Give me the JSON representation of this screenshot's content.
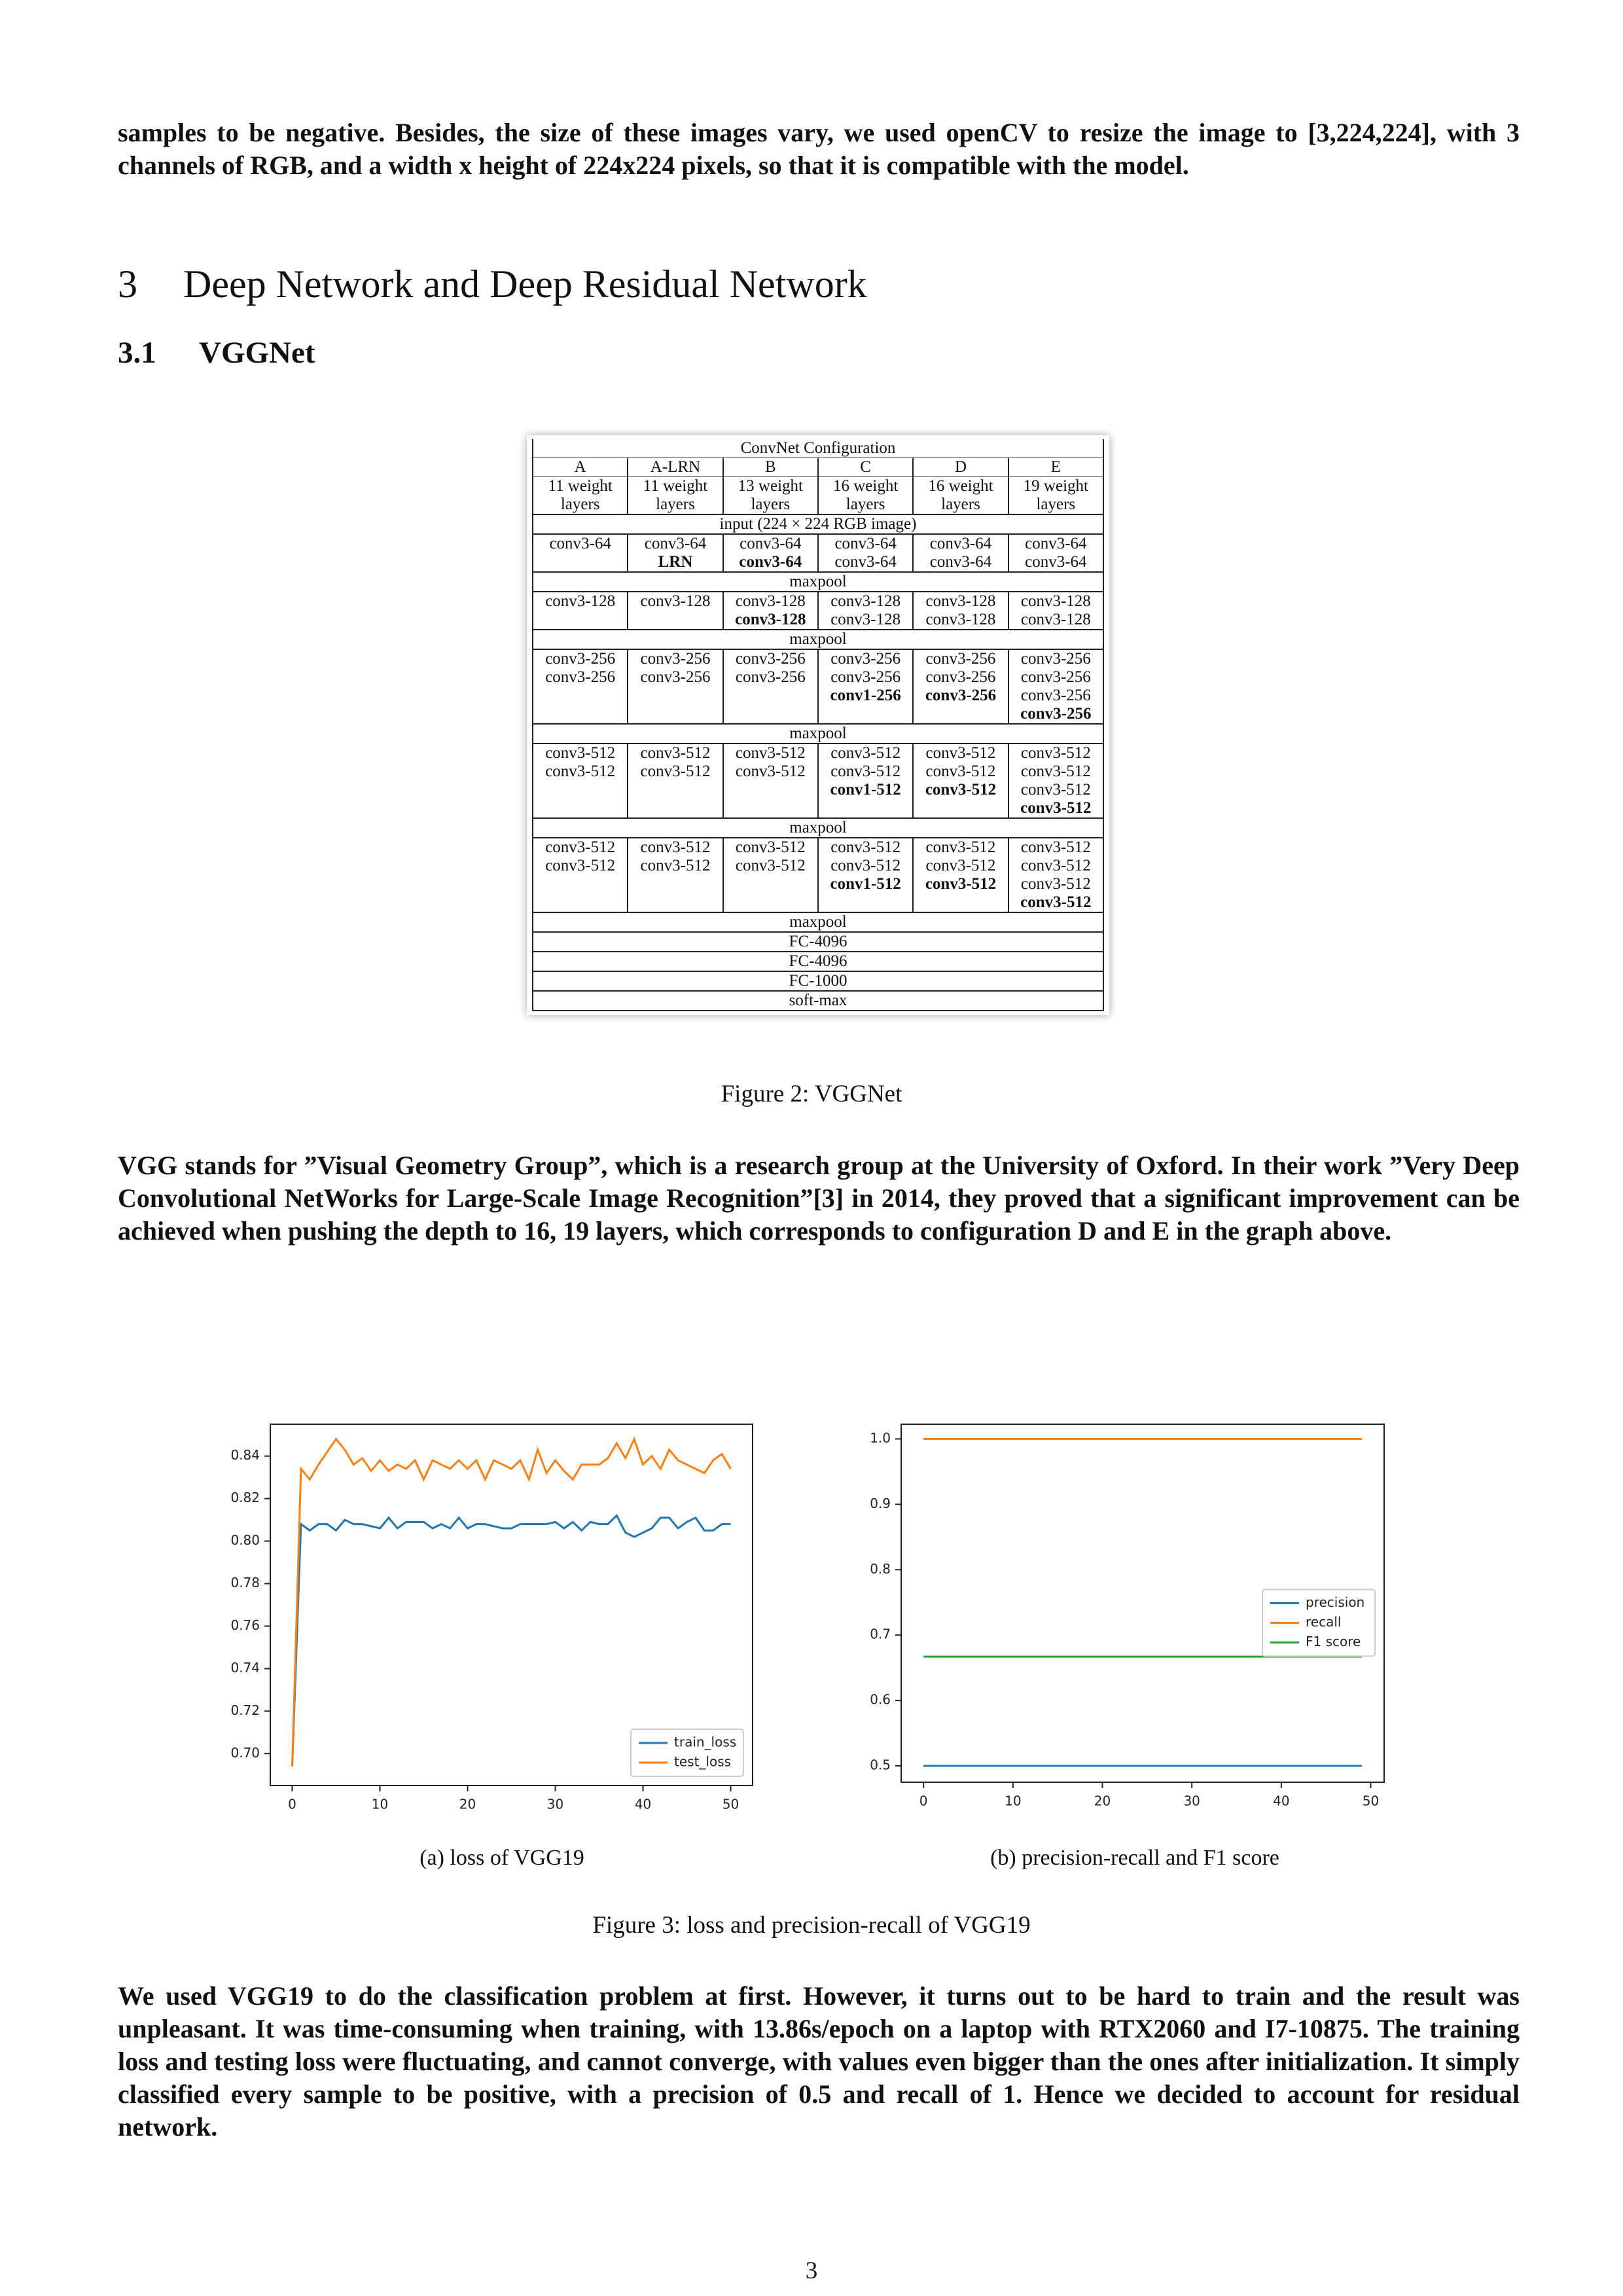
{
  "paragraphs": [
    "samples to be negative. Besides, the size of these images vary, we used openCV to resize the image to [3,224,224], with 3 channels of RGB, and a width x height of 224x224 pixels, so that it is compatible with the model.",
    "VGG stands for ”Visual Geometry Group”, which is a research group at the University of Oxford. In their work ”Very Deep Convolutional NetWorks for Large-Scale Image Recognition”[3] in 2014, they proved that a significant improvement can be achieved when pushing the depth to 16, 19 layers, which corresponds to configuration D and E in the graph above.",
    "We used VGG19 to do the classification problem at first. However, it turns out to be hard to train and the result was unpleasant. It was time-consuming when training, with 13.86s/epoch on a laptop with RTX2060 and I7-10875. The training loss and testing loss were fluctuating, and cannot converge, with values even bigger than the ones after initialization. It simply classified every sample to be positive, with a precision of 0.5 and recall of 1. Hence we decided to account for residual network."
  ],
  "section": {
    "number": "3",
    "title": "Deep Network and Deep Residual Network"
  },
  "subsection": {
    "number": "3.1",
    "title": "VGGNet"
  },
  "table": {
    "title": "ConvNet Configuration",
    "columns": [
      "A",
      "A-LRN",
      "B",
      "C",
      "D",
      "E"
    ],
    "depths": [
      [
        "11 weight",
        "layers"
      ],
      [
        "11 weight",
        "layers"
      ],
      [
        "13 weight",
        "layers"
      ],
      [
        "16 weight",
        "layers"
      ],
      [
        "16 weight",
        "layers"
      ],
      [
        "19 weight",
        "layers"
      ]
    ],
    "rows": [
      {
        "span": "input (224 × 224 RGB image)"
      },
      {
        "cells": [
          [
            "conv3-64"
          ],
          [
            "conv3-64",
            {
              "text": "LRN",
              "bold": true
            }
          ],
          [
            "conv3-64",
            {
              "text": "conv3-64",
              "bold": true
            }
          ],
          [
            "conv3-64",
            "conv3-64"
          ],
          [
            "conv3-64",
            "conv3-64"
          ],
          [
            "conv3-64",
            "conv3-64"
          ]
        ]
      },
      {
        "span": "maxpool"
      },
      {
        "cells": [
          [
            "conv3-128"
          ],
          [
            "conv3-128"
          ],
          [
            "conv3-128",
            {
              "text": "conv3-128",
              "bold": true
            }
          ],
          [
            "conv3-128",
            "conv3-128"
          ],
          [
            "conv3-128",
            "conv3-128"
          ],
          [
            "conv3-128",
            "conv3-128"
          ]
        ]
      },
      {
        "span": "maxpool"
      },
      {
        "cells": [
          [
            "conv3-256",
            "conv3-256"
          ],
          [
            "conv3-256",
            "conv3-256"
          ],
          [
            "conv3-256",
            "conv3-256"
          ],
          [
            "conv3-256",
            "conv3-256",
            {
              "text": "conv1-256",
              "bold": true
            }
          ],
          [
            "conv3-256",
            "conv3-256",
            {
              "text": "conv3-256",
              "bold": true
            }
          ],
          [
            "conv3-256",
            "conv3-256",
            "conv3-256",
            {
              "text": "conv3-256",
              "bold": true
            }
          ]
        ]
      },
      {
        "span": "maxpool"
      },
      {
        "cells": [
          [
            "conv3-512",
            "conv3-512"
          ],
          [
            "conv3-512",
            "conv3-512"
          ],
          [
            "conv3-512",
            "conv3-512"
          ],
          [
            "conv3-512",
            "conv3-512",
            {
              "text": "conv1-512",
              "bold": true
            }
          ],
          [
            "conv3-512",
            "conv3-512",
            {
              "text": "conv3-512",
              "bold": true
            }
          ],
          [
            "conv3-512",
            "conv3-512",
            "conv3-512",
            {
              "text": "conv3-512",
              "bold": true
            }
          ]
        ]
      },
      {
        "span": "maxpool"
      },
      {
        "cells": [
          [
            "conv3-512",
            "conv3-512"
          ],
          [
            "conv3-512",
            "conv3-512"
          ],
          [
            "conv3-512",
            "conv3-512"
          ],
          [
            "conv3-512",
            "conv3-512",
            {
              "text": "conv1-512",
              "bold": true
            }
          ],
          [
            "conv3-512",
            "conv3-512",
            {
              "text": "conv3-512",
              "bold": true
            }
          ],
          [
            "conv3-512",
            "conv3-512",
            "conv3-512",
            {
              "text": "conv3-512",
              "bold": true
            }
          ]
        ]
      },
      {
        "span": "maxpool"
      },
      {
        "span": "FC-4096"
      },
      {
        "span": "FC-4096"
      },
      {
        "span": "FC-1000"
      },
      {
        "span": "soft-max"
      }
    ]
  },
  "figure2_caption": "Figure 2: VGGNet",
  "subcaptions": [
    "(a) loss of VGG19",
    "(b) precision-recall and F1 score"
  ],
  "figure3_caption": "Figure 3: loss and precision-recall of VGG19",
  "page_number": "3",
  "chart_data": [
    {
      "type": "line",
      "x": [
        0,
        1,
        2,
        3,
        4,
        5,
        6,
        7,
        8,
        9,
        10,
        11,
        12,
        13,
        14,
        15,
        16,
        17,
        18,
        19,
        20,
        21,
        22,
        23,
        24,
        25,
        26,
        27,
        28,
        29,
        30,
        31,
        32,
        33,
        34,
        35,
        36,
        37,
        38,
        39,
        40,
        41,
        42,
        43,
        44,
        45,
        46,
        47,
        48,
        49,
        50
      ],
      "series": [
        {
          "name": "train_loss",
          "color": "#1f77b4",
          "values": [
            0.694,
            0.808,
            0.805,
            0.808,
            0.808,
            0.805,
            0.81,
            0.808,
            0.808,
            0.807,
            0.806,
            0.811,
            0.806,
            0.809,
            0.809,
            0.809,
            0.806,
            0.808,
            0.806,
            0.811,
            0.806,
            0.808,
            0.808,
            0.807,
            0.806,
            0.806,
            0.808,
            0.808,
            0.808,
            0.808,
            0.809,
            0.806,
            0.809,
            0.805,
            0.809,
            0.808,
            0.808,
            0.812,
            0.804,
            0.802,
            0.804,
            0.806,
            0.811,
            0.811,
            0.806,
            0.809,
            0.811,
            0.805,
            0.805,
            0.808,
            0.808
          ]
        },
        {
          "name": "test_loss",
          "color": "#ff7f0e",
          "values": [
            0.694,
            0.834,
            0.829,
            0.836,
            0.842,
            0.848,
            0.843,
            0.836,
            0.839,
            0.833,
            0.838,
            0.833,
            0.836,
            0.834,
            0.838,
            0.829,
            0.838,
            0.836,
            0.834,
            0.838,
            0.834,
            0.838,
            0.829,
            0.838,
            0.836,
            0.834,
            0.838,
            0.829,
            0.843,
            0.832,
            0.838,
            0.833,
            0.829,
            0.836,
            0.836,
            0.836,
            0.839,
            0.846,
            0.839,
            0.848,
            0.836,
            0.84,
            0.834,
            0.843,
            0.838,
            0.836,
            0.834,
            0.832,
            0.838,
            0.841,
            0.834
          ]
        }
      ],
      "xlim": [
        -2.5,
        52.5
      ],
      "ylim": [
        0.685,
        0.855
      ],
      "xticks": [
        0,
        10,
        20,
        30,
        40,
        50
      ],
      "yticks": [
        {
          "value": 0.7,
          "label": "0.70"
        },
        0.72,
        0.74,
        0.76,
        0.78,
        {
          "value": 0.8,
          "label": "0.80"
        },
        0.82,
        0.84
      ],
      "legend": "lower right"
    },
    {
      "type": "line",
      "x": [
        0,
        1,
        2,
        3,
        4,
        5,
        6,
        7,
        8,
        9,
        10,
        11,
        12,
        13,
        14,
        15,
        16,
        17,
        18,
        19,
        20,
        21,
        22,
        23,
        24,
        25,
        26,
        27,
        28,
        29,
        30,
        31,
        32,
        33,
        34,
        35,
        36,
        37,
        38,
        39,
        40,
        41,
        42,
        43,
        44,
        45,
        46,
        47,
        48,
        49
      ],
      "series": [
        {
          "name": "precision",
          "color": "#1f77b4",
          "values": [
            0.5,
            0.5,
            0.5,
            0.5,
            0.5,
            0.5,
            0.5,
            0.5,
            0.5,
            0.5,
            0.5,
            0.5,
            0.5,
            0.5,
            0.5,
            0.5,
            0.5,
            0.5,
            0.5,
            0.5,
            0.5,
            0.5,
            0.5,
            0.5,
            0.5,
            0.5,
            0.5,
            0.5,
            0.5,
            0.5,
            0.5,
            0.5,
            0.5,
            0.5,
            0.5,
            0.5,
            0.5,
            0.5,
            0.5,
            0.5,
            0.5,
            0.5,
            0.5,
            0.5,
            0.5,
            0.5,
            0.5,
            0.5,
            0.5,
            0.5
          ]
        },
        {
          "name": "recall",
          "color": "#ff7f0e",
          "values": [
            1,
            1,
            1,
            1,
            1,
            1,
            1,
            1,
            1,
            1,
            1,
            1,
            1,
            1,
            1,
            1,
            1,
            1,
            1,
            1,
            1,
            1,
            1,
            1,
            1,
            1,
            1,
            1,
            1,
            1,
            1,
            1,
            1,
            1,
            1,
            1,
            1,
            1,
            1,
            1,
            1,
            1,
            1,
            1,
            1,
            1,
            1,
            1,
            1,
            1
          ]
        },
        {
          "name": "F1 score",
          "color": "#2ca02c",
          "values": [
            0.667,
            0.667,
            0.667,
            0.667,
            0.667,
            0.667,
            0.667,
            0.667,
            0.667,
            0.667,
            0.667,
            0.667,
            0.667,
            0.667,
            0.667,
            0.667,
            0.667,
            0.667,
            0.667,
            0.667,
            0.667,
            0.667,
            0.667,
            0.667,
            0.667,
            0.667,
            0.667,
            0.667,
            0.667,
            0.667,
            0.667,
            0.667,
            0.667,
            0.667,
            0.667,
            0.667,
            0.667,
            0.667,
            0.667,
            0.667,
            0.667,
            0.667,
            0.667,
            0.667,
            0.667,
            0.667,
            0.667,
            0.667,
            0.667,
            0.667
          ]
        }
      ],
      "xlim": [
        -2.5,
        51.5
      ],
      "ylim": [
        0.475,
        1.0225
      ],
      "xticks": [
        0,
        10,
        20,
        30,
        40,
        50
      ],
      "yticks": [
        0.5,
        0.6,
        0.7,
        0.8,
        0.9,
        {
          "value": 1,
          "label": "1.0"
        }
      ],
      "legend": "center right"
    }
  ]
}
